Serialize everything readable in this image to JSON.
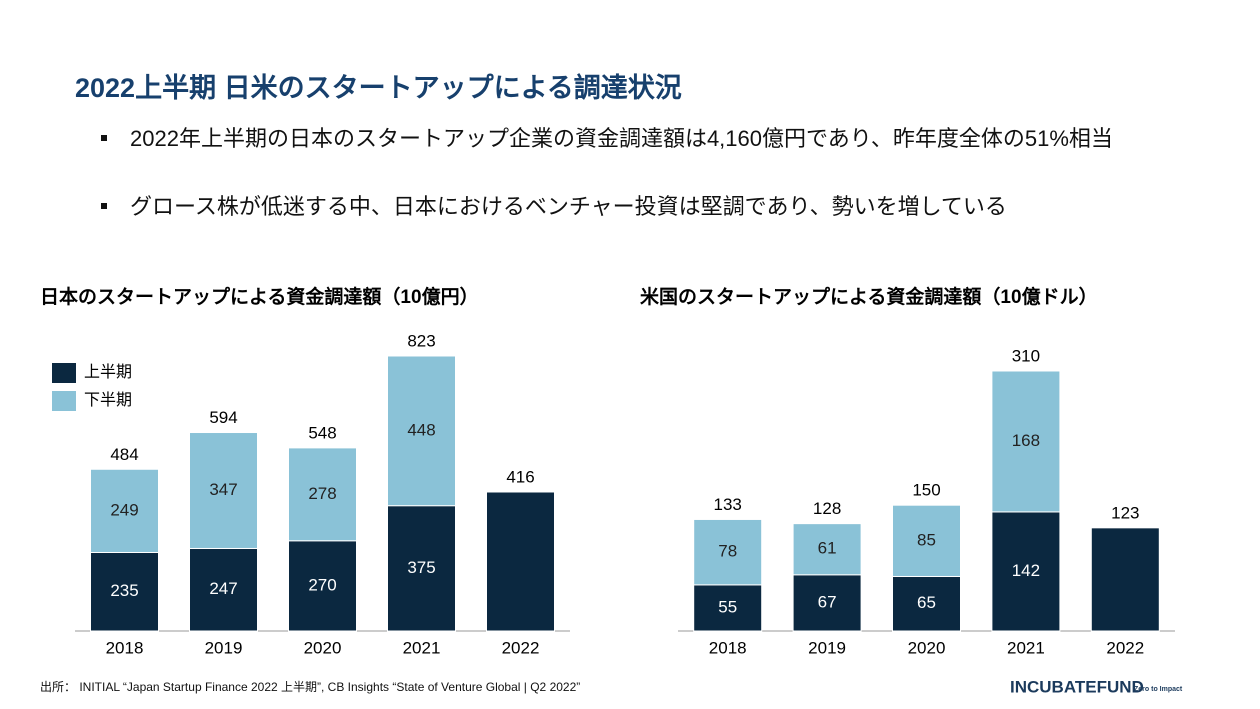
{
  "title": "2022上半期 日米のスタートアップによる調達状況",
  "bullets": [
    "2022年上半期の日本のスタートアップ企業の資金調達額は4,160億円であり、昨年度全体の51%相当",
    "グロース株が低迷する中、日本におけるベンチャー投資は堅調であり、勢いを増している"
  ],
  "chart_data": [
    {
      "type": "bar",
      "stacked": true,
      "title": "日本のスタートアップによる資金調達額（10億円）",
      "categories": [
        "2018",
        "2019",
        "2020",
        "2021",
        "2022"
      ],
      "series": [
        {
          "name": "上半期",
          "color": "#0b2840",
          "values": [
            235,
            247,
            270,
            375,
            416
          ]
        },
        {
          "name": "下半期",
          "color": "#8ac2d7",
          "values": [
            249,
            347,
            278,
            448,
            null
          ]
        }
      ],
      "totals": [
        484,
        594,
        548,
        823,
        null
      ],
      "legend": true
    },
    {
      "type": "bar",
      "stacked": true,
      "title": "米国のスタートアップによる資金調達額（10億ドル）",
      "categories": [
        "2018",
        "2019",
        "2020",
        "2021",
        "2022"
      ],
      "series": [
        {
          "color": "#0b2840",
          "values": [
            55,
            67,
            65,
            142,
            123
          ]
        },
        {
          "color": "#8ac2d7",
          "values": [
            78,
            61,
            85,
            168,
            null
          ]
        }
      ],
      "totals": [
        133,
        128,
        150,
        310,
        null
      ],
      "legend": false
    }
  ],
  "source": "出所： INITIAL “Japan Startup Finance 2022 上半期”, CB Insights “State of Venture Global | Q2 2022”",
  "logo": {
    "name": "INCUBATEFUND",
    "tagline": "Zero to Impact"
  }
}
